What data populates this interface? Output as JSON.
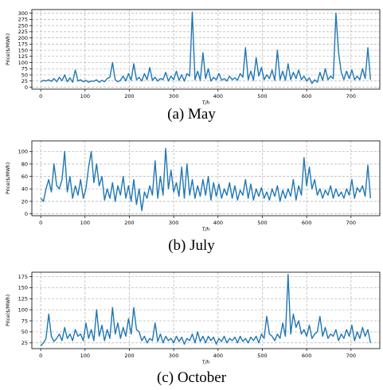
{
  "chart_data": [
    {
      "type": "line",
      "caption": "(a) May",
      "xlabel": "T/h",
      "ylabel": "Price($/MWh)",
      "xlim": [
        -20,
        765
      ],
      "ylim": [
        -8,
        315
      ],
      "xticks": [
        0,
        100,
        200,
        300,
        400,
        500,
        600,
        700
      ],
      "yticks": [
        0,
        25,
        50,
        75,
        100,
        125,
        150,
        175,
        200,
        225,
        250,
        275,
        300
      ],
      "grid": true,
      "color": "#1f77b4",
      "series": [
        {
          "x": [
            0,
            6,
            12,
            18,
            24,
            30,
            36,
            42,
            48,
            54,
            60,
            66,
            72,
            78,
            84,
            90,
            96,
            102,
            108,
            114,
            120,
            126,
            132,
            138,
            144,
            150,
            156,
            162,
            168,
            174,
            180,
            186,
            192,
            198,
            204,
            210,
            216,
            222,
            228,
            234,
            240,
            246,
            252,
            258,
            264,
            270,
            276,
            282,
            288,
            294,
            300,
            306,
            312,
            318,
            324,
            330,
            336,
            342,
            348,
            354,
            360,
            366,
            372,
            378,
            384,
            390,
            396,
            402,
            408,
            414,
            420,
            426,
            432,
            438,
            444,
            450,
            456,
            462,
            468,
            474,
            480,
            486,
            492,
            498,
            504,
            510,
            516,
            522,
            528,
            534,
            540,
            546,
            552,
            558,
            564,
            570,
            576,
            582,
            588,
            594,
            600,
            606,
            612,
            618,
            624,
            630,
            636,
            642,
            648,
            654,
            660,
            666,
            672,
            678,
            684,
            690,
            696,
            702,
            708,
            714,
            720,
            726,
            732,
            738,
            744
          ],
          "y": [
            22,
            28,
            25,
            30,
            24,
            35,
            22,
            40,
            26,
            50,
            22,
            38,
            20,
            70,
            25,
            30,
            22,
            28,
            20,
            25,
            24,
            30,
            20,
            28,
            22,
            35,
            40,
            100,
            30,
            22,
            28,
            45,
            25,
            55,
            28,
            95,
            30,
            40,
            25,
            55,
            30,
            80,
            28,
            40,
            25,
            35,
            30,
            60,
            25,
            45,
            30,
            65,
            28,
            50,
            25,
            55,
            45,
            305,
            30,
            65,
            28,
            140,
            35,
            75,
            25,
            40,
            30,
            55,
            28,
            35,
            25,
            45,
            30,
            38,
            28,
            55,
            40,
            160,
            30,
            65,
            28,
            120,
            45,
            80,
            30,
            50,
            35,
            70,
            28,
            150,
            30,
            65,
            28,
            95,
            30,
            60,
            35,
            70,
            30,
            45,
            25,
            38,
            15,
            30,
            20,
            60,
            28,
            75,
            30,
            45,
            35,
            300,
            140,
            60,
            30,
            65,
            35,
            70,
            30,
            45,
            30,
            75,
            35,
            160,
            30
          ]
        }
      ]
    },
    {
      "type": "line",
      "caption": "(b) July",
      "xlabel": "T/h",
      "ylabel": "Price($/MWh)",
      "xlim": [
        -20,
        765
      ],
      "ylim": [
        -3,
        117
      ],
      "xticks": [
        0,
        100,
        200,
        300,
        400,
        500,
        600,
        700
      ],
      "yticks": [
        0,
        20,
        40,
        60,
        80,
        100
      ],
      "grid": true,
      "color": "#1f77b4",
      "series": [
        {
          "x": [
            0,
            6,
            12,
            18,
            24,
            30,
            36,
            42,
            48,
            54,
            60,
            66,
            72,
            78,
            84,
            90,
            96,
            102,
            108,
            114,
            120,
            126,
            132,
            138,
            144,
            150,
            156,
            162,
            168,
            174,
            180,
            186,
            192,
            198,
            204,
            210,
            216,
            222,
            228,
            234,
            240,
            246,
            252,
            258,
            264,
            270,
            276,
            282,
            288,
            294,
            300,
            306,
            312,
            318,
            324,
            330,
            336,
            342,
            348,
            354,
            360,
            366,
            372,
            378,
            384,
            390,
            396,
            402,
            408,
            414,
            420,
            426,
            432,
            438,
            444,
            450,
            456,
            462,
            468,
            474,
            480,
            486,
            492,
            498,
            504,
            510,
            516,
            522,
            528,
            534,
            540,
            546,
            552,
            558,
            564,
            570,
            576,
            582,
            588,
            594,
            600,
            606,
            612,
            618,
            624,
            630,
            636,
            642,
            648,
            654,
            660,
            666,
            672,
            678,
            684,
            690,
            696,
            702,
            708,
            714,
            720,
            726,
            732,
            738,
            744
          ],
          "y": [
            25,
            20,
            40,
            55,
            35,
            80,
            45,
            40,
            55,
            100,
            35,
            60,
            25,
            45,
            30,
            55,
            25,
            40,
            75,
            100,
            50,
            80,
            45,
            60,
            22,
            40,
            25,
            50,
            20,
            45,
            30,
            60,
            25,
            45,
            20,
            55,
            15,
            40,
            5,
            35,
            25,
            45,
            30,
            85,
            25,
            60,
            30,
            105,
            40,
            70,
            35,
            50,
            28,
            75,
            25,
            80,
            30,
            55,
            25,
            45,
            28,
            55,
            30,
            60,
            22,
            50,
            28,
            48,
            25,
            40,
            30,
            50,
            25,
            45,
            22,
            38,
            30,
            55,
            25,
            48,
            22,
            40,
            28,
            42,
            25,
            35,
            22,
            40,
            28,
            45,
            20,
            38,
            25,
            40,
            28,
            55,
            22,
            45,
            30,
            90,
            45,
            75,
            40,
            55,
            30,
            40,
            25,
            38,
            30,
            45,
            25,
            40,
            28,
            35,
            25,
            40,
            30,
            55,
            25,
            42,
            35,
            45,
            28,
            78,
            25
          ]
        }
      ]
    },
    {
      "type": "line",
      "caption": "(c) October",
      "xlabel": "T/h",
      "ylabel": "Price($/MWh)",
      "xlim": [
        -20,
        765
      ],
      "ylim": [
        12,
        185
      ],
      "xticks": [
        0,
        100,
        200,
        300,
        400,
        500,
        600,
        700
      ],
      "yticks": [
        25,
        50,
        75,
        100,
        125,
        150,
        175
      ],
      "grid": true,
      "color": "#1f77b4",
      "series": [
        {
          "x": [
            0,
            6,
            12,
            18,
            24,
            30,
            36,
            42,
            48,
            54,
            60,
            66,
            72,
            78,
            84,
            90,
            96,
            102,
            108,
            114,
            120,
            126,
            132,
            138,
            144,
            150,
            156,
            162,
            168,
            174,
            180,
            186,
            192,
            198,
            204,
            210,
            216,
            222,
            228,
            234,
            240,
            246,
            252,
            258,
            264,
            270,
            276,
            282,
            288,
            294,
            300,
            306,
            312,
            318,
            324,
            330,
            336,
            342,
            348,
            354,
            360,
            366,
            372,
            378,
            384,
            390,
            396,
            402,
            408,
            414,
            420,
            426,
            432,
            438,
            444,
            450,
            456,
            462,
            468,
            474,
            480,
            486,
            492,
            498,
            504,
            510,
            516,
            522,
            528,
            534,
            540,
            546,
            552,
            558,
            564,
            570,
            576,
            582,
            588,
            594,
            600,
            606,
            612,
            618,
            624,
            630,
            636,
            642,
            648,
            654,
            660,
            666,
            672,
            678,
            684,
            690,
            696,
            702,
            708,
            714,
            720,
            726,
            732,
            738,
            744
          ],
          "y": [
            18,
            25,
            35,
            90,
            40,
            28,
            35,
            45,
            30,
            60,
            35,
            45,
            30,
            55,
            40,
            45,
            30,
            70,
            35,
            55,
            30,
            100,
            40,
            65,
            30,
            55,
            35,
            105,
            45,
            70,
            35,
            60,
            40,
            80,
            45,
            105,
            55,
            50,
            30,
            40,
            25,
            35,
            30,
            70,
            28,
            45,
            25,
            40,
            30,
            35,
            25,
            40,
            28,
            38,
            22,
            35,
            30,
            45,
            25,
            50,
            28,
            40,
            25,
            40,
            30,
            38,
            22,
            35,
            28,
            40,
            25,
            35,
            30,
            38,
            25,
            40,
            28,
            35,
            25,
            38,
            30,
            40,
            25,
            45,
            35,
            85,
            45,
            40,
            30,
            45,
            35,
            70,
            40,
            180,
            45,
            90,
            60,
            75,
            45,
            55,
            40,
            65,
            35,
            45,
            50,
            85,
            40,
            60,
            35,
            45,
            40,
            55,
            30,
            45,
            35,
            55,
            40,
            65,
            30,
            50,
            35,
            60,
            40,
            55,
            25
          ]
        }
      ]
    }
  ]
}
